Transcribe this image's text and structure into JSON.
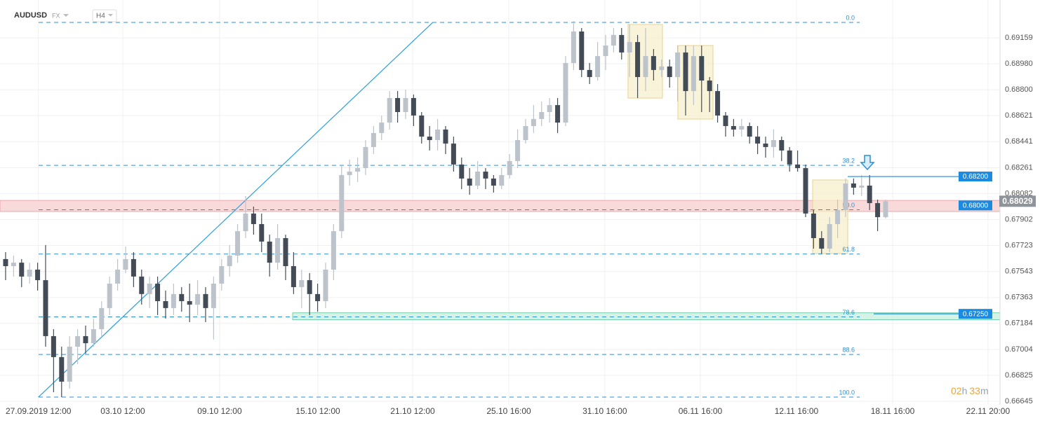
{
  "header": {
    "symbol": "AUDUSD",
    "market": "FX",
    "interval": "H4"
  },
  "chart_data": {
    "type": "candlestick",
    "up_color": "#bcc3cb",
    "down_color": "#434c56",
    "ohlc": [
      [
        0.67629,
        0.67677,
        0.67483,
        0.6758
      ],
      [
        0.6758,
        0.67653,
        0.67508,
        0.67604
      ],
      [
        0.67604,
        0.67629,
        0.67435,
        0.67508
      ],
      [
        0.67508,
        0.67604,
        0.67459,
        0.67556
      ],
      [
        0.67556,
        0.67604,
        0.67411,
        0.67483
      ],
      [
        0.67483,
        0.67726,
        0.67023,
        0.67096
      ],
      [
        0.67096,
        0.67144,
        0.66708,
        0.66951
      ],
      [
        0.66951,
        0.67023,
        0.66674,
        0.66781
      ],
      [
        0.66781,
        0.67096,
        0.66733,
        0.67023
      ],
      [
        0.67023,
        0.67144,
        0.66902,
        0.67096
      ],
      [
        0.67096,
        0.67169,
        0.66975,
        0.67047
      ],
      [
        0.67047,
        0.67217,
        0.67023,
        0.67144
      ],
      [
        0.67144,
        0.67338,
        0.67096,
        0.6729
      ],
      [
        0.6729,
        0.67508,
        0.67241,
        0.67459
      ],
      [
        0.67459,
        0.67629,
        0.67411,
        0.67556
      ],
      [
        0.67556,
        0.67716,
        0.67532,
        0.67629
      ],
      [
        0.67629,
        0.67677,
        0.67435,
        0.67508
      ],
      [
        0.67508,
        0.67556,
        0.67314,
        0.67387
      ],
      [
        0.67387,
        0.67508,
        0.6729,
        0.67459
      ],
      [
        0.67459,
        0.67508,
        0.67241,
        0.67338
      ],
      [
        0.67338,
        0.67411,
        0.67217,
        0.6729
      ],
      [
        0.6729,
        0.67459,
        0.67241,
        0.67387
      ],
      [
        0.67387,
        0.67435,
        0.67265,
        0.67338
      ],
      [
        0.67338,
        0.67459,
        0.67193,
        0.67314
      ],
      [
        0.67314,
        0.67483,
        0.67241,
        0.67387
      ],
      [
        0.67387,
        0.67435,
        0.67193,
        0.6729
      ],
      [
        0.6729,
        0.67508,
        0.67072,
        0.67459
      ],
      [
        0.67459,
        0.67629,
        0.67411,
        0.6758
      ],
      [
        0.6758,
        0.67726,
        0.67508,
        0.67653
      ],
      [
        0.67653,
        0.67871,
        0.67604,
        0.67822
      ],
      [
        0.67822,
        0.68065,
        0.67774,
        0.67944
      ],
      [
        0.67944,
        0.67992,
        0.67798,
        0.67871
      ],
      [
        0.67871,
        0.67944,
        0.67677,
        0.6775
      ],
      [
        0.6775,
        0.67798,
        0.67508,
        0.67604
      ],
      [
        0.67604,
        0.67871,
        0.67556,
        0.67774
      ],
      [
        0.67774,
        0.67798,
        0.67483,
        0.6758
      ],
      [
        0.6758,
        0.67677,
        0.67387,
        0.67435
      ],
      [
        0.67435,
        0.67556,
        0.6729,
        0.67483
      ],
      [
        0.67483,
        0.67532,
        0.67241,
        0.67387
      ],
      [
        0.67387,
        0.67459,
        0.67265,
        0.67338
      ],
      [
        0.67338,
        0.67604,
        0.6729,
        0.67556
      ],
      [
        0.67556,
        0.67871,
        0.67483,
        0.67822
      ],
      [
        0.67822,
        0.68283,
        0.67774,
        0.6821
      ],
      [
        0.6821,
        0.68317,
        0.68137,
        0.68234
      ],
      [
        0.68234,
        0.68331,
        0.68162,
        0.68258
      ],
      [
        0.68258,
        0.68452,
        0.6821,
        0.68404
      ],
      [
        0.68404,
        0.68549,
        0.68355,
        0.68501
      ],
      [
        0.68501,
        0.68622,
        0.68452,
        0.68573
      ],
      [
        0.68573,
        0.68791,
        0.68525,
        0.68743
      ],
      [
        0.68743,
        0.68791,
        0.68573,
        0.68646
      ],
      [
        0.68646,
        0.68801,
        0.68598,
        0.68743
      ],
      [
        0.68743,
        0.68767,
        0.68549,
        0.68622
      ],
      [
        0.68622,
        0.68646,
        0.68428,
        0.68476
      ],
      [
        0.68476,
        0.68549,
        0.6838,
        0.68452
      ],
      [
        0.68452,
        0.68598,
        0.6838,
        0.68525
      ],
      [
        0.68525,
        0.68549,
        0.68355,
        0.68428
      ],
      [
        0.68428,
        0.68476,
        0.68234,
        0.68283
      ],
      [
        0.68283,
        0.68331,
        0.68113,
        0.68186
      ],
      [
        0.68186,
        0.68258,
        0.68074,
        0.68137
      ],
      [
        0.68137,
        0.68307,
        0.68113,
        0.68234
      ],
      [
        0.68234,
        0.68258,
        0.68113,
        0.68186
      ],
      [
        0.68186,
        0.6821,
        0.68089,
        0.68137
      ],
      [
        0.68137,
        0.68258,
        0.68113,
        0.6821
      ],
      [
        0.6821,
        0.68355,
        0.68186,
        0.68307
      ],
      [
        0.68307,
        0.68525,
        0.68258,
        0.68452
      ],
      [
        0.68452,
        0.68598,
        0.68428,
        0.68549
      ],
      [
        0.68549,
        0.68694,
        0.68501,
        0.68598
      ],
      [
        0.68598,
        0.68719,
        0.68549,
        0.68646
      ],
      [
        0.68646,
        0.68743,
        0.68573,
        0.68694
      ],
      [
        0.68694,
        0.68743,
        0.68501,
        0.68573
      ],
      [
        0.68573,
        0.69033,
        0.68549,
        0.68985
      ],
      [
        0.68985,
        0.69276,
        0.68937,
        0.69203
      ],
      [
        0.69203,
        0.69227,
        0.68888,
        0.68937
      ],
      [
        0.68937,
        0.68985,
        0.6884,
        0.68888
      ],
      [
        0.68888,
        0.6913,
        0.68864,
        0.69033
      ],
      [
        0.69033,
        0.69179,
        0.68937,
        0.69106
      ],
      [
        0.69106,
        0.69227,
        0.69058,
        0.69179
      ],
      [
        0.69179,
        0.69227,
        0.69009,
        0.69058
      ],
      [
        0.69058,
        0.69251,
        0.68888,
        0.6913
      ],
      [
        0.6913,
        0.69179,
        0.68743,
        0.68888
      ],
      [
        0.68888,
        0.69227,
        0.68791,
        0.69033
      ],
      [
        0.69033,
        0.69082,
        0.68864,
        0.68937
      ],
      [
        0.68937,
        0.69009,
        0.68888,
        0.68961
      ],
      [
        0.68961,
        0.69009,
        0.68815,
        0.68888
      ],
      [
        0.68888,
        0.69106,
        0.68719,
        0.69058
      ],
      [
        0.69058,
        0.69106,
        0.68622,
        0.68791
      ],
      [
        0.68791,
        0.69106,
        0.68694,
        0.69033
      ],
      [
        0.69033,
        0.69106,
        0.68646,
        0.68864
      ],
      [
        0.68864,
        0.68888,
        0.68646,
        0.68791
      ],
      [
        0.68791,
        0.6884,
        0.68573,
        0.68622
      ],
      [
        0.68622,
        0.68646,
        0.68476,
        0.68549
      ],
      [
        0.68549,
        0.68598,
        0.68476,
        0.68525
      ],
      [
        0.68525,
        0.68598,
        0.68476,
        0.68549
      ],
      [
        0.68549,
        0.68573,
        0.68428,
        0.68476
      ],
      [
        0.68476,
        0.68549,
        0.68355,
        0.68428
      ],
      [
        0.68428,
        0.68476,
        0.68331,
        0.68404
      ],
      [
        0.68404,
        0.68525,
        0.68331,
        0.68452
      ],
      [
        0.68452,
        0.68476,
        0.68307,
        0.6838
      ],
      [
        0.6838,
        0.68404,
        0.68234,
        0.68283
      ],
      [
        0.68283,
        0.6838,
        0.68234,
        0.68258
      ],
      [
        0.68258,
        0.68283,
        0.67919,
        0.67944
      ],
      [
        0.67944,
        0.67968,
        0.67701,
        0.67774
      ],
      [
        0.67774,
        0.67822,
        0.67667,
        0.67701
      ],
      [
        0.67701,
        0.67919,
        0.67677,
        0.67871
      ],
      [
        0.67871,
        0.6804,
        0.67774,
        0.67968
      ],
      [
        0.67968,
        0.68186,
        0.67919,
        0.68152
      ],
      [
        0.68152,
        0.68186,
        0.68074,
        0.68123
      ],
      [
        0.68123,
        0.6821,
        0.68065,
        0.68137
      ],
      [
        0.68137,
        0.6821,
        0.67968,
        0.68016
      ],
      [
        0.68016,
        0.6804,
        0.67822,
        0.67919
      ],
      [
        0.67919,
        0.6804,
        0.6791,
        0.68029
      ]
    ],
    "xlim": [
      -0.7,
      124.3
    ],
    "xticks": [
      {
        "value": 4.1,
        "label": "27.09.2019 12:00"
      },
      {
        "value": 14.65,
        "label": "03.10 12:00"
      },
      {
        "value": 26.75,
        "label": "09.10 12:00"
      },
      {
        "value": 39.04,
        "label": "15.10 12:00"
      },
      {
        "value": 50.88,
        "label": "21.10 12:00"
      },
      {
        "value": 62.9,
        "label": "25.10 16:00"
      },
      {
        "value": 74.9,
        "label": "31.10 16:00"
      },
      {
        "value": 86.84,
        "label": "06.11 16:00"
      },
      {
        "value": 98.86,
        "label": "12.11 16:00"
      },
      {
        "value": 110.88,
        "label": "18.11 16:00"
      },
      {
        "value": 122.8,
        "label": "22.11 20:00"
      }
    ],
    "ylim": [
      0.66621,
      0.69421
    ],
    "yticks": [
      0.69159,
      {
        "value": 0.6898,
        "label": "0.68980"
      },
      {
        "value": 0.688,
        "label": "0.68800"
      },
      0.68621,
      0.68441,
      0.68261,
      0.68082,
      0.67902,
      0.67723,
      0.67543,
      0.67363,
      0.67184,
      0.67004,
      0.66825,
      0.66645
    ],
    "grid": true,
    "fib_color": "#2a8fd6",
    "fib_levels": [
      {
        "label": "0.0",
        "value": 0.69266
      },
      {
        "label": "38.2",
        "value": 0.68277
      },
      {
        "label": "50.0",
        "value": 0.6797
      },
      {
        "label": "61.8",
        "value": 0.67664
      },
      {
        "label": "78.6",
        "value": 0.67229
      },
      {
        "label": "88.6",
        "value": 0.66969
      },
      {
        "label": "100.0",
        "value": 0.66674
      }
    ],
    "trendline": {
      "x": [
        4.1,
        53.4
      ],
      "y": [
        0.66674,
        0.69266
      ]
    },
    "price_levels": [
      {
        "value": 0.682,
        "label": "0.68200"
      },
      {
        "value": 0.68,
        "label": "0.68000"
      },
      {
        "value": 0.6725,
        "label": "0.67250"
      }
    ],
    "current_price": 0.68029,
    "zones": [
      {
        "from": 0.67958,
        "to": 0.68035,
        "color": "#f8d3d3"
      },
      {
        "from": 0.67209,
        "to": 0.67257,
        "color": "#cdf0e2"
      }
    ],
    "countdown": {
      "hours": "02",
      "hours_unit": "h",
      "minutes": "33",
      "minutes_unit": "m"
    }
  }
}
